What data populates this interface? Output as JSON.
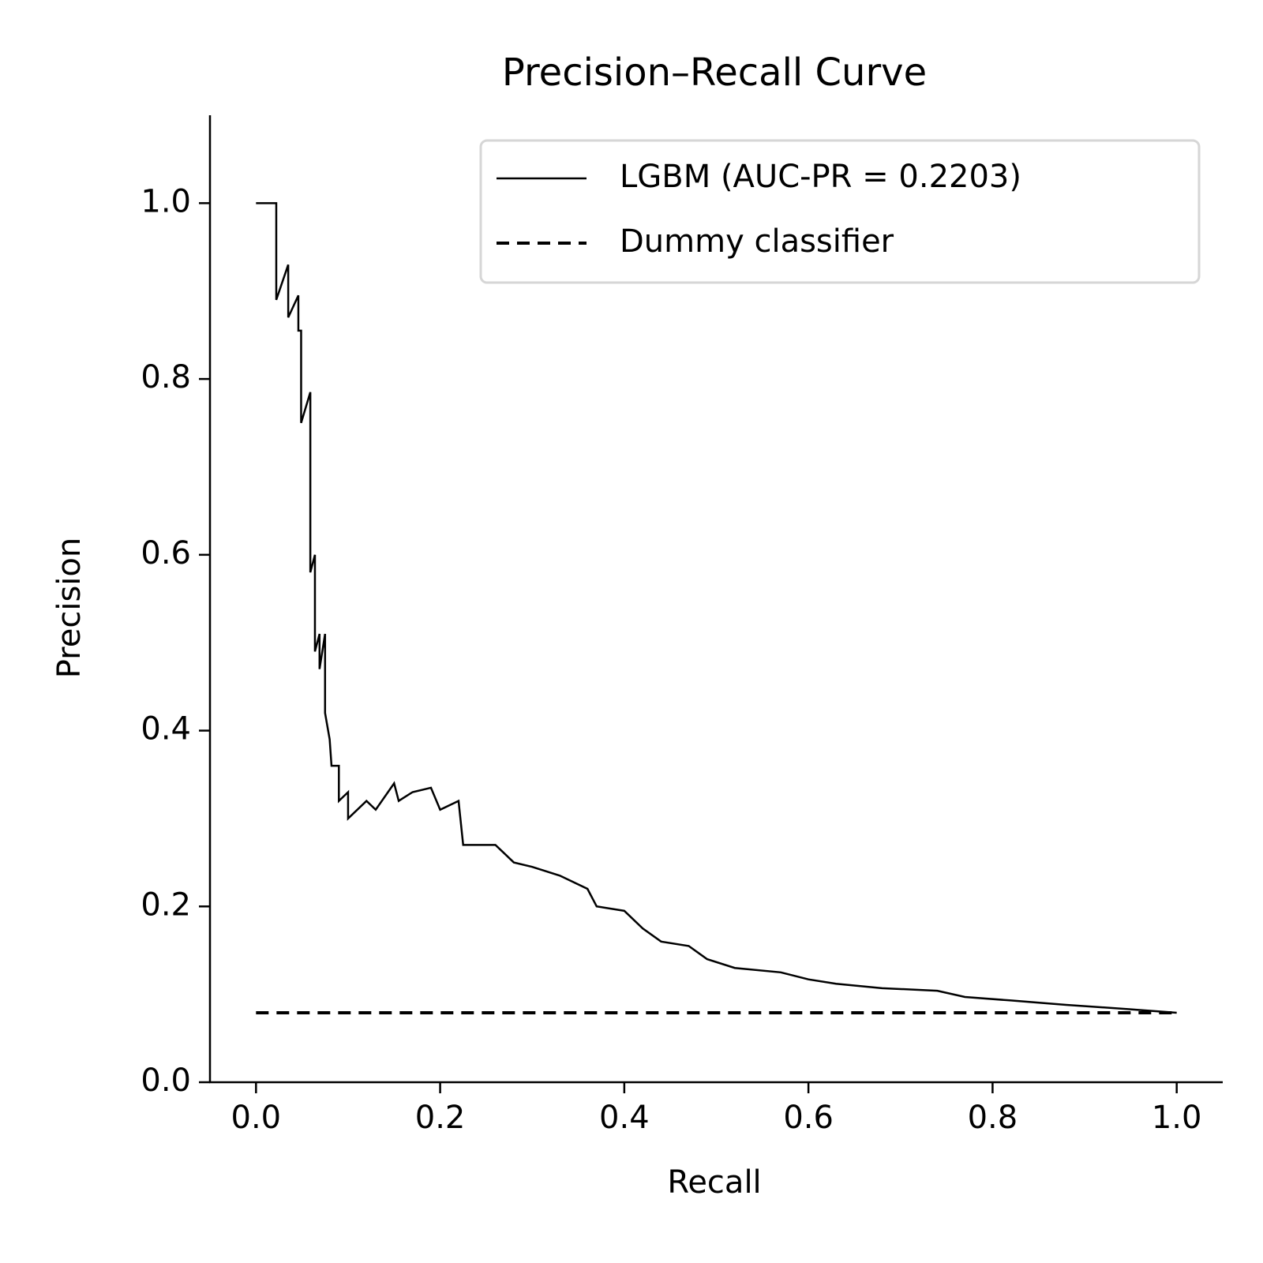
{
  "chart_data": {
    "type": "line",
    "title": "Precision–Recall Curve",
    "xlabel": "Recall",
    "ylabel": "Precision",
    "xlim": [
      -0.05,
      1.05
    ],
    "ylim": [
      0,
      1.1
    ],
    "xticks": [
      {
        "value": 0,
        "label": "0.0"
      },
      0.2,
      0.4,
      0.6,
      0.8,
      {
        "value": 1,
        "label": "1.0"
      }
    ],
    "yticks": [
      {
        "value": 0,
        "label": "0.0"
      },
      0.2,
      0.4,
      0.6,
      0.8,
      {
        "value": 1,
        "label": "1.0"
      }
    ],
    "grid": false,
    "legend": "upper right",
    "series": [
      {
        "name": "LGBM (AUC-PR = 0.2203)",
        "color": "#000000",
        "dash": "solid",
        "x": [
          0,
          0.022,
          0.022,
          0.035,
          0.035,
          0.046,
          0.046,
          0.049,
          0.049,
          0.059,
          0.059,
          0.064,
          0.064,
          0.069,
          0.069,
          0.075,
          0.075,
          0.08,
          0.082,
          0.09,
          0.09,
          0.1,
          0.1,
          0.12,
          0.13,
          0.15,
          0.155,
          0.17,
          0.19,
          0.2,
          0.22,
          0.225,
          0.26,
          0.28,
          0.3,
          0.33,
          0.36,
          0.37,
          0.4,
          0.42,
          0.44,
          0.47,
          0.49,
          0.52,
          0.57,
          0.6,
          0.63,
          0.68,
          0.74,
          0.77,
          0.82,
          0.88,
          0.95,
          1.0
        ],
        "values": [
          1.0,
          1.0,
          0.89,
          0.93,
          0.87,
          0.895,
          0.855,
          0.855,
          0.75,
          0.785,
          0.58,
          0.6,
          0.49,
          0.51,
          0.47,
          0.51,
          0.42,
          0.39,
          0.36,
          0.36,
          0.32,
          0.33,
          0.3,
          0.32,
          0.31,
          0.34,
          0.32,
          0.33,
          0.335,
          0.31,
          0.32,
          0.27,
          0.27,
          0.25,
          0.245,
          0.235,
          0.22,
          0.2,
          0.195,
          0.175,
          0.16,
          0.155,
          0.14,
          0.13,
          0.125,
          0.117,
          0.112,
          0.107,
          0.104,
          0.097,
          0.093,
          0.088,
          0.083,
          0.079
        ]
      },
      {
        "name": "Dummy classifier",
        "color": "#000000",
        "dash": "dashed",
        "x": [
          0,
          1
        ],
        "values": [
          0.079,
          0.079
        ]
      }
    ]
  }
}
